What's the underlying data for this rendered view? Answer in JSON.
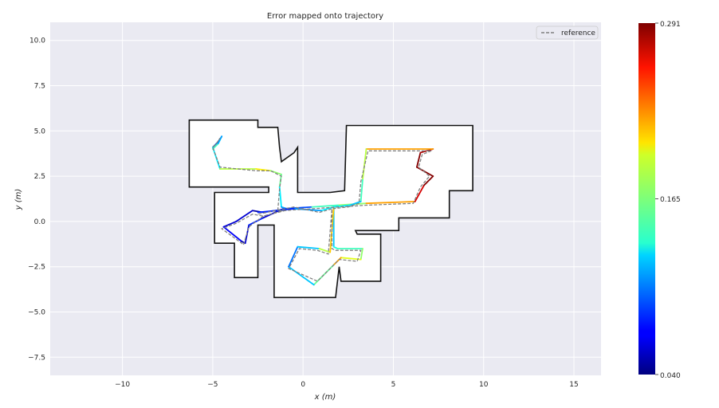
{
  "chart_data": {
    "type": "line",
    "title": "Error mapped onto trajectory",
    "xlabel": "x (m)",
    "ylabel": "y (m)",
    "xlim": [
      -14,
      16.5
    ],
    "ylim": [
      -8.5,
      11.0
    ],
    "xticks": [
      -10,
      -5,
      0,
      5,
      10,
      15
    ],
    "yticks": [
      10.0,
      7.5,
      5.0,
      2.5,
      0.0,
      -2.5,
      -5.0,
      -7.5
    ],
    "grid": true,
    "background": "#eaeaf2",
    "legend": {
      "position": "top-right",
      "entries": [
        {
          "label": "reference",
          "style": "dashed",
          "color": "#808080"
        }
      ]
    },
    "colorbar": {
      "colormap": "jet",
      "min": 0.04,
      "max": 0.291,
      "tick_labels": [
        "0.291",
        "0.165",
        "0.040"
      ]
    },
    "map_outline": [
      [
        [
          -6.3,
          5.6
        ],
        [
          -2.5,
          5.6
        ],
        [
          -2.5,
          5.2
        ],
        [
          -1.4,
          5.2
        ],
        [
          -1.3,
          4.1
        ],
        [
          -1.2,
          3.3
        ],
        [
          -0.5,
          3.8
        ],
        [
          -0.3,
          4.1
        ],
        [
          -0.3,
          1.6
        ],
        [
          1.5,
          1.6
        ],
        [
          2.3,
          1.7
        ],
        [
          2.4,
          5.3
        ],
        [
          9.4,
          5.3
        ],
        [
          9.4,
          1.7
        ],
        [
          8.1,
          1.7
        ],
        [
          8.1,
          0.2
        ],
        [
          5.3,
          0.2
        ],
        [
          5.3,
          -0.5
        ],
        [
          2.9,
          -0.5
        ],
        [
          3.0,
          -0.7
        ],
        [
          4.3,
          -0.7
        ],
        [
          4.3,
          -3.3
        ],
        [
          2.1,
          -3.3
        ],
        [
          2.0,
          -2.5
        ],
        [
          1.8,
          -4.2
        ],
        [
          -1.6,
          -4.2
        ],
        [
          -1.6,
          -0.2
        ],
        [
          -2.5,
          -0.2
        ],
        [
          -2.5,
          -3.1
        ],
        [
          -3.8,
          -3.1
        ],
        [
          -3.8,
          -1.2
        ],
        [
          -4.9,
          -1.2
        ],
        [
          -4.9,
          1.6
        ],
        [
          -1.9,
          1.6
        ],
        [
          -1.9,
          1.9
        ],
        [
          -6.3,
          1.9
        ],
        [
          -6.3,
          5.6
        ]
      ]
    ],
    "series": [
      {
        "name": "reference",
        "style": "dashed",
        "color": "#808080",
        "x": [
          -5.0,
          -4.8,
          -4.6,
          -4.8,
          -5.0,
          -4.6,
          -2.6,
          -1.8,
          -1.2,
          -1.3,
          -1.4,
          -1.0,
          -2.2,
          -2.8,
          -3.7,
          -4.5,
          -3.4,
          -3.3,
          -3.0,
          -2.2,
          -1.1,
          0.5,
          2.0,
          3.5,
          6.1,
          6.5,
          7.0,
          6.4,
          6.6,
          7.1,
          3.6,
          3.2,
          3.1,
          2.5,
          1.6,
          1.6,
          1.8,
          3.2,
          3.0,
          2.0,
          1.6,
          0.8,
          -0.8,
          -0.2,
          0.8,
          1.4,
          1.6,
          0.9,
          -0.5,
          -2.5
        ],
        "y": [
          4.1,
          4.3,
          4.6,
          4.3,
          4.1,
          3.0,
          2.8,
          2.8,
          2.5,
          1.8,
          0.6,
          0.6,
          0.3,
          0.4,
          -0.1,
          -0.4,
          -1.2,
          -1.3,
          -0.3,
          0.3,
          0.6,
          0.7,
          0.8,
          0.9,
          1.0,
          1.9,
          2.5,
          3.0,
          3.7,
          3.9,
          3.9,
          2.2,
          1.0,
          0.8,
          0.7,
          -1.5,
          -1.6,
          -1.6,
          -2.2,
          -2.1,
          -2.5,
          -3.3,
          -2.6,
          -1.5,
          -1.6,
          -1.8,
          0.7,
          0.5,
          0.8,
          0.4
        ]
      },
      {
        "name": "",
        "style": "error-colored",
        "x": [
          -5.0,
          -4.7,
          -4.5,
          -4.7,
          -5.0,
          -4.6,
          -2.6,
          -1.8,
          -1.2,
          -1.3,
          -1.2,
          -0.9,
          -2.2,
          -2.8,
          -3.7,
          -4.4,
          -3.4,
          -3.2,
          -3.0,
          -2.2,
          -1.1,
          0.5,
          2.0,
          3.5,
          6.2,
          6.7,
          7.2,
          6.3,
          6.5,
          7.2,
          3.5,
          3.3,
          3.2,
          2.6,
          1.7,
          1.7,
          1.9,
          3.3,
          3.2,
          2.1,
          1.7,
          0.6,
          -0.8,
          -0.3,
          0.9,
          1.5,
          1.7,
          1.0,
          -0.5,
          -2.5
        ],
        "y": [
          4.0,
          4.3,
          4.7,
          4.4,
          4.1,
          2.9,
          2.9,
          2.8,
          2.6,
          1.9,
          0.8,
          0.7,
          0.5,
          0.6,
          0.0,
          -0.3,
          -1.1,
          -1.2,
          -0.2,
          0.2,
          0.7,
          0.8,
          0.9,
          1.0,
          1.1,
          2.0,
          2.5,
          3.0,
          3.8,
          4.0,
          4.0,
          2.3,
          1.1,
          0.9,
          0.8,
          -1.4,
          -1.5,
          -1.5,
          -2.1,
          -2.0,
          -2.4,
          -3.5,
          -2.5,
          -1.4,
          -1.5,
          -1.7,
          0.8,
          0.6,
          0.7,
          0.5
        ],
        "error": [
          0.15,
          0.12,
          0.11,
          0.1,
          0.13,
          0.18,
          0.2,
          0.17,
          0.16,
          0.13,
          0.11,
          0.08,
          0.05,
          0.06,
          0.06,
          0.07,
          0.05,
          0.06,
          0.08,
          0.06,
          0.09,
          0.15,
          0.17,
          0.22,
          0.27,
          0.29,
          0.29,
          0.29,
          0.28,
          0.22,
          0.18,
          0.15,
          0.12,
          0.13,
          0.12,
          0.14,
          0.15,
          0.17,
          0.19,
          0.22,
          0.16,
          0.12,
          0.1,
          0.12,
          0.18,
          0.21,
          0.13,
          0.11,
          0.08,
          0.05
        ]
      }
    ]
  }
}
